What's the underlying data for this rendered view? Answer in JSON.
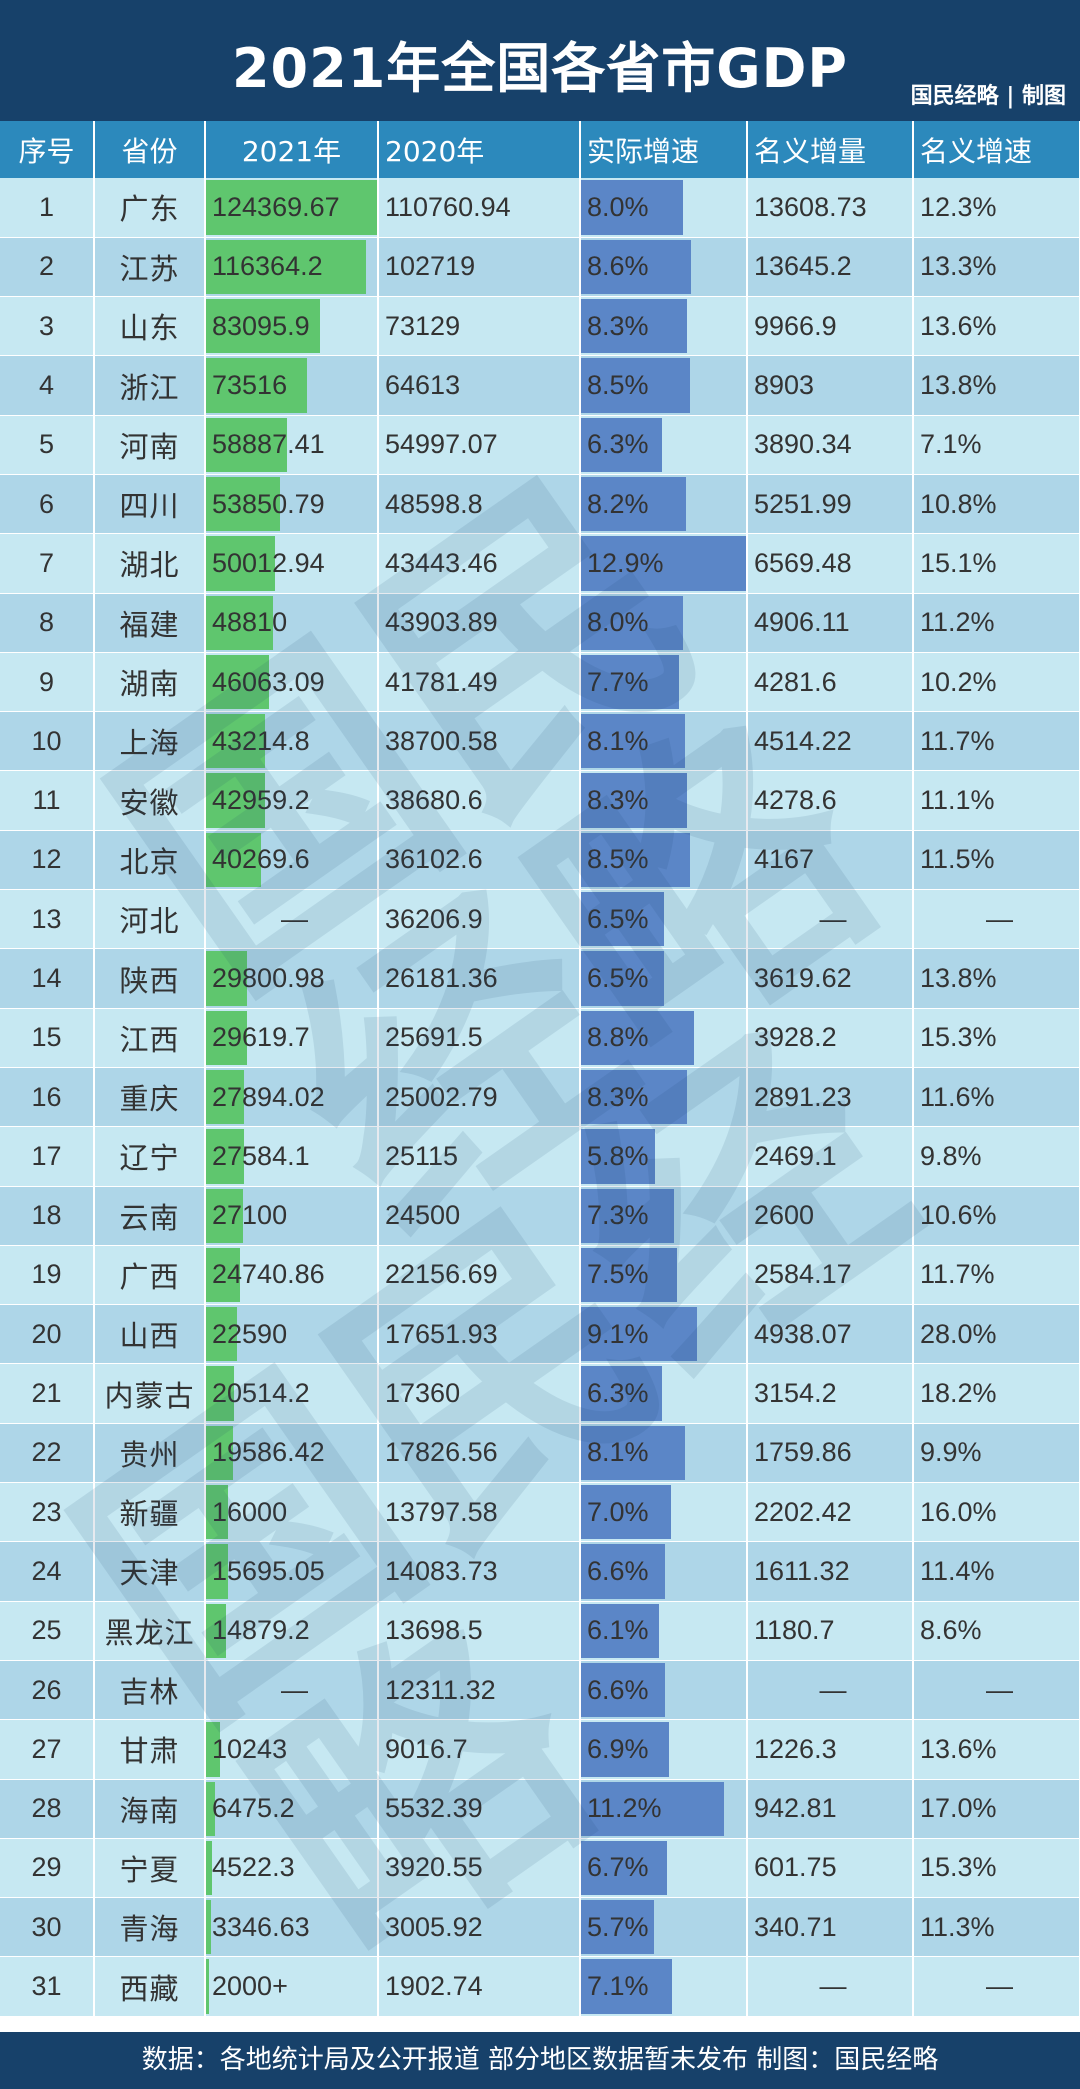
{
  "header": {
    "title": "2021年全国各省市GDP",
    "brand": "国民经略 | 制图"
  },
  "columns": [
    "序号",
    "省份",
    "2021年",
    "2020年",
    "实际增速",
    "名义增量",
    "名义增速"
  ],
  "colors": {
    "header_bg": "#17416a",
    "column_header_bg": "#2c89bc",
    "row_light": "#c6e8f2",
    "row_dark": "#aed6e8",
    "bar_2021": "#5fc66e",
    "bar_growth": "#5b86c7"
  },
  "chart_data": {
    "type": "table",
    "title": "2021年全国各省市GDP",
    "columns": [
      "序号",
      "省份",
      "2021年",
      "2020年",
      "实际增速",
      "名义增量",
      "名义增速"
    ],
    "bars": {
      "2021年": {
        "color": "#5fc66e",
        "max": 124369.67
      },
      "实际增速": {
        "color": "#5b86c7",
        "max": 12.9
      }
    },
    "rows": [
      {
        "rank": "1",
        "province": "广东",
        "gdp2021": "124369.67",
        "gdp2021_value": 124369.67,
        "gdp2020": "110760.94",
        "real_growth": "8.0%",
        "real_growth_value": 8.0,
        "nominal_increase": "13608.73",
        "nominal_growth": "12.3%"
      },
      {
        "rank": "2",
        "province": "江苏",
        "gdp2021": "116364.2",
        "gdp2021_value": 116364.2,
        "gdp2020": "102719",
        "real_growth": "8.6%",
        "real_growth_value": 8.6,
        "nominal_increase": "13645.2",
        "nominal_growth": "13.3%"
      },
      {
        "rank": "3",
        "province": "山东",
        "gdp2021": "83095.9",
        "gdp2021_value": 83095.9,
        "gdp2020": "73129",
        "real_growth": "8.3%",
        "real_growth_value": 8.3,
        "nominal_increase": "9966.9",
        "nominal_growth": "13.6%"
      },
      {
        "rank": "4",
        "province": "浙江",
        "gdp2021": "73516",
        "gdp2021_value": 73516,
        "gdp2020": "64613",
        "real_growth": "8.5%",
        "real_growth_value": 8.5,
        "nominal_increase": "8903",
        "nominal_growth": "13.8%"
      },
      {
        "rank": "5",
        "province": "河南",
        "gdp2021": "58887.41",
        "gdp2021_value": 58887.41,
        "gdp2020": "54997.07",
        "real_growth": "6.3%",
        "real_growth_value": 6.3,
        "nominal_increase": "3890.34",
        "nominal_growth": "7.1%"
      },
      {
        "rank": "6",
        "province": "四川",
        "gdp2021": "53850.79",
        "gdp2021_value": 53850.79,
        "gdp2020": "48598.8",
        "real_growth": "8.2%",
        "real_growth_value": 8.2,
        "nominal_increase": "5251.99",
        "nominal_growth": "10.8%"
      },
      {
        "rank": "7",
        "province": "湖北",
        "gdp2021": "50012.94",
        "gdp2021_value": 50012.94,
        "gdp2020": "43443.46",
        "real_growth": "12.9%",
        "real_growth_value": 12.9,
        "nominal_increase": "6569.48",
        "nominal_growth": "15.1%"
      },
      {
        "rank": "8",
        "province": "福建",
        "gdp2021": "48810",
        "gdp2021_value": 48810,
        "gdp2020": "43903.89",
        "real_growth": "8.0%",
        "real_growth_value": 8.0,
        "nominal_increase": "4906.11",
        "nominal_growth": "11.2%"
      },
      {
        "rank": "9",
        "province": "湖南",
        "gdp2021": "46063.09",
        "gdp2021_value": 46063.09,
        "gdp2020": "41781.49",
        "real_growth": "7.7%",
        "real_growth_value": 7.7,
        "nominal_increase": "4281.6",
        "nominal_growth": "10.2%"
      },
      {
        "rank": "10",
        "province": "上海",
        "gdp2021": "43214.8",
        "gdp2021_value": 43214.8,
        "gdp2020": "38700.58",
        "real_growth": "8.1%",
        "real_growth_value": 8.1,
        "nominal_increase": "4514.22",
        "nominal_growth": "11.7%"
      },
      {
        "rank": "11",
        "province": "安徽",
        "gdp2021": "42959.2",
        "gdp2021_value": 42959.2,
        "gdp2020": "38680.6",
        "real_growth": "8.3%",
        "real_growth_value": 8.3,
        "nominal_increase": "4278.6",
        "nominal_growth": "11.1%"
      },
      {
        "rank": "12",
        "province": "北京",
        "gdp2021": "40269.6",
        "gdp2021_value": 40269.6,
        "gdp2020": "36102.6",
        "real_growth": "8.5%",
        "real_growth_value": 8.5,
        "nominal_increase": "4167",
        "nominal_growth": "11.5%"
      },
      {
        "rank": "13",
        "province": "河北",
        "gdp2021": "—",
        "gdp2021_value": null,
        "gdp2020": "36206.9",
        "real_growth": "6.5%",
        "real_growth_value": 6.5,
        "nominal_increase": "—",
        "nominal_growth": "—"
      },
      {
        "rank": "14",
        "province": "陕西",
        "gdp2021": "29800.98",
        "gdp2021_value": 29800.98,
        "gdp2020": "26181.36",
        "real_growth": "6.5%",
        "real_growth_value": 6.5,
        "nominal_increase": "3619.62",
        "nominal_growth": "13.8%"
      },
      {
        "rank": "15",
        "province": "江西",
        "gdp2021": "29619.7",
        "gdp2021_value": 29619.7,
        "gdp2020": "25691.5",
        "real_growth": "8.8%",
        "real_growth_value": 8.8,
        "nominal_increase": "3928.2",
        "nominal_growth": "15.3%"
      },
      {
        "rank": "16",
        "province": "重庆",
        "gdp2021": "27894.02",
        "gdp2021_value": 27894.02,
        "gdp2020": "25002.79",
        "real_growth": "8.3%",
        "real_growth_value": 8.3,
        "nominal_increase": "2891.23",
        "nominal_growth": "11.6%"
      },
      {
        "rank": "17",
        "province": "辽宁",
        "gdp2021": "27584.1",
        "gdp2021_value": 27584.1,
        "gdp2020": "25115",
        "real_growth": "5.8%",
        "real_growth_value": 5.8,
        "nominal_increase": "2469.1",
        "nominal_growth": "9.8%"
      },
      {
        "rank": "18",
        "province": "云南",
        "gdp2021": "27100",
        "gdp2021_value": 27100,
        "gdp2020": "24500",
        "real_growth": "7.3%",
        "real_growth_value": 7.3,
        "nominal_increase": "2600",
        "nominal_growth": "10.6%"
      },
      {
        "rank": "19",
        "province": "广西",
        "gdp2021": "24740.86",
        "gdp2021_value": 24740.86,
        "gdp2020": "22156.69",
        "real_growth": "7.5%",
        "real_growth_value": 7.5,
        "nominal_increase": "2584.17",
        "nominal_growth": "11.7%"
      },
      {
        "rank": "20",
        "province": "山西",
        "gdp2021": "22590",
        "gdp2021_value": 22590,
        "gdp2020": "17651.93",
        "real_growth": "9.1%",
        "real_growth_value": 9.1,
        "nominal_increase": "4938.07",
        "nominal_growth": "28.0%"
      },
      {
        "rank": "21",
        "province": "内蒙古",
        "gdp2021": "20514.2",
        "gdp2021_value": 20514.2,
        "gdp2020": "17360",
        "real_growth": "6.3%",
        "real_growth_value": 6.3,
        "nominal_increase": "3154.2",
        "nominal_growth": "18.2%"
      },
      {
        "rank": "22",
        "province": "贵州",
        "gdp2021": "19586.42",
        "gdp2021_value": 19586.42,
        "gdp2020": "17826.56",
        "real_growth": "8.1%",
        "real_growth_value": 8.1,
        "nominal_increase": "1759.86",
        "nominal_growth": "9.9%"
      },
      {
        "rank": "23",
        "province": "新疆",
        "gdp2021": "16000",
        "gdp2021_value": 16000,
        "gdp2020": "13797.58",
        "real_growth": "7.0%",
        "real_growth_value": 7.0,
        "nominal_increase": "2202.42",
        "nominal_growth": "16.0%"
      },
      {
        "rank": "24",
        "province": "天津",
        "gdp2021": "15695.05",
        "gdp2021_value": 15695.05,
        "gdp2020": "14083.73",
        "real_growth": "6.6%",
        "real_growth_value": 6.6,
        "nominal_increase": "1611.32",
        "nominal_growth": "11.4%"
      },
      {
        "rank": "25",
        "province": "黑龙江",
        "gdp2021": "14879.2",
        "gdp2021_value": 14879.2,
        "gdp2020": "13698.5",
        "real_growth": "6.1%",
        "real_growth_value": 6.1,
        "nominal_increase": "1180.7",
        "nominal_growth": "8.6%"
      },
      {
        "rank": "26",
        "province": "吉林",
        "gdp2021": "—",
        "gdp2021_value": null,
        "gdp2020": "12311.32",
        "real_growth": "6.6%",
        "real_growth_value": 6.6,
        "nominal_increase": "—",
        "nominal_growth": "—"
      },
      {
        "rank": "27",
        "province": "甘肃",
        "gdp2021": "10243",
        "gdp2021_value": 10243,
        "gdp2020": "9016.7",
        "real_growth": "6.9%",
        "real_growth_value": 6.9,
        "nominal_increase": "1226.3",
        "nominal_growth": "13.6%"
      },
      {
        "rank": "28",
        "province": "海南",
        "gdp2021": "6475.2",
        "gdp2021_value": 6475.2,
        "gdp2020": "5532.39",
        "real_growth": "11.2%",
        "real_growth_value": 11.2,
        "nominal_increase": "942.81",
        "nominal_growth": "17.0%"
      },
      {
        "rank": "29",
        "province": "宁夏",
        "gdp2021": "4522.3",
        "gdp2021_value": 4522.3,
        "gdp2020": "3920.55",
        "real_growth": "6.7%",
        "real_growth_value": 6.7,
        "nominal_increase": "601.75",
        "nominal_growth": "15.3%"
      },
      {
        "rank": "30",
        "province": "青海",
        "gdp2021": "3346.63",
        "gdp2021_value": 3346.63,
        "gdp2020": "3005.92",
        "real_growth": "5.7%",
        "real_growth_value": 5.7,
        "nominal_increase": "340.71",
        "nominal_growth": "11.3%"
      },
      {
        "rank": "31",
        "province": "西藏",
        "gdp2021": "2000+",
        "gdp2021_value": 2000,
        "gdp2020": "1902.74",
        "real_growth": "7.1%",
        "real_growth_value": 7.1,
        "nominal_increase": "—",
        "nominal_growth": "—"
      }
    ]
  },
  "watermark": "国民经略",
  "footer": {
    "text": "数据：各地统计局及公开报道 部分地区数据暂未发布 制图：国民经略"
  }
}
